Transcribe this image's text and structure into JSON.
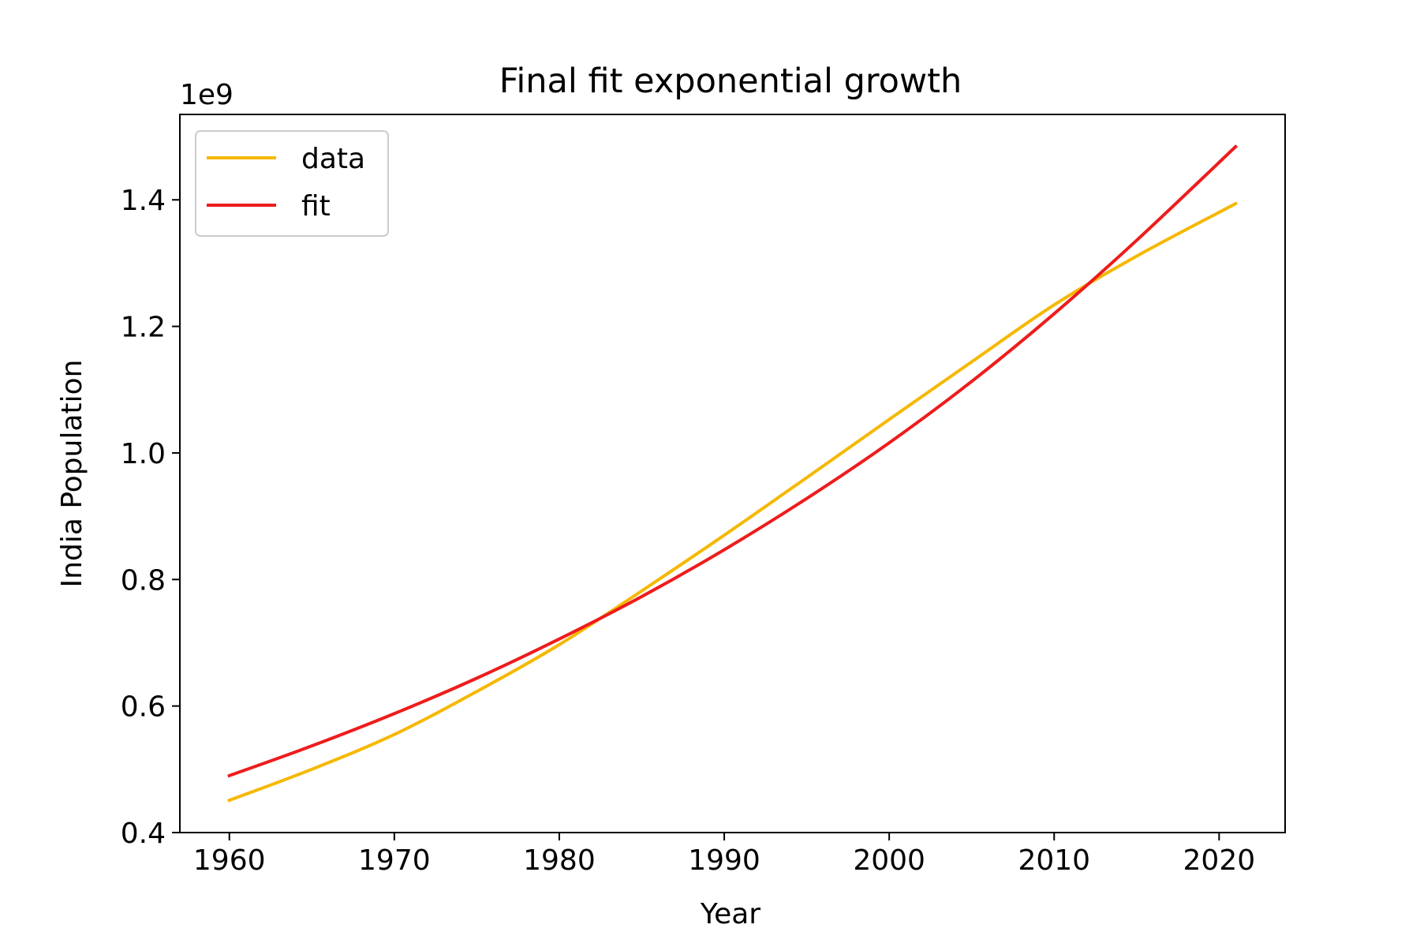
{
  "chart_data": {
    "type": "line",
    "title": "Final fit exponential growth",
    "xlabel": "Year",
    "ylabel": "India Population",
    "y_offset_label": "1e9",
    "xlim": [
      1957,
      2024
    ],
    "ylim": [
      0.4,
      1.535
    ],
    "y_units": "×1e9",
    "x_ticks": [
      1960,
      1970,
      1980,
      1990,
      2000,
      2010,
      2020
    ],
    "x_tick_labels": [
      "1960",
      "1970",
      "1980",
      "1990",
      "2000",
      "2010",
      "2020"
    ],
    "y_ticks": [
      0.4,
      0.6,
      0.8,
      1.0,
      1.2,
      1.4
    ],
    "y_tick_labels": [
      "0.4",
      "0.6",
      "0.8",
      "1.0",
      "1.2",
      "1.4"
    ],
    "grid": false,
    "legend_position": "top-left",
    "x": [
      1960,
      1965,
      1970,
      1975,
      1980,
      1985,
      1990,
      1995,
      2000,
      2005,
      2010,
      2015,
      2021
    ],
    "series": [
      {
        "name": "data",
        "color": "#f5b800",
        "values": [
          0.451,
          0.5,
          0.555,
          0.623,
          0.697,
          0.782,
          0.87,
          0.961,
          1.053,
          1.144,
          1.234,
          1.311,
          1.394
        ]
      },
      {
        "name": "fit",
        "color": "#ee1c1c",
        "values": [
          0.49,
          0.537,
          0.588,
          0.644,
          0.706,
          0.773,
          0.847,
          0.928,
          1.016,
          1.113,
          1.22,
          1.336,
          1.484
        ]
      }
    ]
  }
}
